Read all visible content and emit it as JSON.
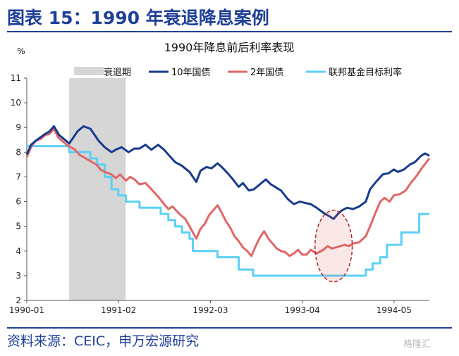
{
  "figure": {
    "title": "图表 15：1990 年衰退降息案例",
    "source": "资料来源：CEIC，申万宏源研究",
    "watermark": "格隆汇"
  },
  "colors": {
    "brand": "#1f3f99",
    "ten_year": "#173a8c",
    "two_year": "#e06666",
    "fed_funds": "#5bd0f5",
    "recession": "#d6d6d6",
    "highlight_ellipse": "#b22222"
  },
  "chart_data": {
    "type": "line",
    "title": "1990年降息前后利率表现",
    "unit": "%",
    "ylim": [
      2,
      11
    ],
    "yticks": [
      2,
      3,
      4,
      5,
      6,
      7,
      8,
      9,
      10,
      11
    ],
    "xlim": [
      1990.0,
      1994.75
    ],
    "xticks": [
      {
        "x": 1990.0,
        "label": "1990-01"
      },
      {
        "x": 1991.083,
        "label": "1991-02"
      },
      {
        "x": 1992.167,
        "label": "1992-03"
      },
      {
        "x": 1993.25,
        "label": "1993-04"
      },
      {
        "x": 1994.333,
        "label": "1994-05"
      }
    ],
    "grid": false,
    "legend_position": "top",
    "recession": {
      "name": "衰退期",
      "start": 1990.5,
      "end": 1991.167
    },
    "highlight": {
      "type": "ellipse",
      "x_center": 1993.62,
      "y_center": 4.2,
      "x_radius": 0.22,
      "y_radius": 1.45
    },
    "series": [
      {
        "name": "10年国债",
        "key": "ten_year",
        "points": [
          [
            1990.0,
            7.9
          ],
          [
            1990.05,
            8.3
          ],
          [
            1990.12,
            8.5
          ],
          [
            1990.2,
            8.7
          ],
          [
            1990.27,
            8.85
          ],
          [
            1990.32,
            9.05
          ],
          [
            1990.38,
            8.7
          ],
          [
            1990.45,
            8.5
          ],
          [
            1990.5,
            8.35
          ],
          [
            1990.55,
            8.6
          ],
          [
            1990.6,
            8.85
          ],
          [
            1990.67,
            9.05
          ],
          [
            1990.75,
            8.95
          ],
          [
            1990.8,
            8.7
          ],
          [
            1990.85,
            8.45
          ],
          [
            1990.92,
            8.2
          ],
          [
            1991.0,
            8.0
          ],
          [
            1991.05,
            8.1
          ],
          [
            1991.12,
            8.2
          ],
          [
            1991.2,
            8.0
          ],
          [
            1991.27,
            8.15
          ],
          [
            1991.33,
            8.15
          ],
          [
            1991.4,
            8.3
          ],
          [
            1991.47,
            8.1
          ],
          [
            1991.55,
            8.3
          ],
          [
            1991.62,
            8.1
          ],
          [
            1991.67,
            7.9
          ],
          [
            1991.75,
            7.6
          ],
          [
            1991.83,
            7.45
          ],
          [
            1991.92,
            7.2
          ],
          [
            1992.0,
            6.8
          ],
          [
            1992.05,
            7.25
          ],
          [
            1992.12,
            7.4
          ],
          [
            1992.18,
            7.35
          ],
          [
            1992.25,
            7.55
          ],
          [
            1992.3,
            7.4
          ],
          [
            1992.37,
            7.15
          ],
          [
            1992.42,
            6.95
          ],
          [
            1992.5,
            6.6
          ],
          [
            1992.55,
            6.75
          ],
          [
            1992.62,
            6.45
          ],
          [
            1992.68,
            6.5
          ],
          [
            1992.75,
            6.7
          ],
          [
            1992.82,
            6.9
          ],
          [
            1992.88,
            6.7
          ],
          [
            1992.95,
            6.55
          ],
          [
            1993.0,
            6.45
          ],
          [
            1993.08,
            6.1
          ],
          [
            1993.15,
            5.9
          ],
          [
            1993.22,
            6.0
          ],
          [
            1993.28,
            5.95
          ],
          [
            1993.35,
            5.9
          ],
          [
            1993.42,
            5.75
          ],
          [
            1993.5,
            5.55
          ],
          [
            1993.55,
            5.45
          ],
          [
            1993.62,
            5.3
          ],
          [
            1993.67,
            5.5
          ],
          [
            1993.72,
            5.65
          ],
          [
            1993.78,
            5.75
          ],
          [
            1993.85,
            5.7
          ],
          [
            1993.92,
            5.8
          ],
          [
            1994.0,
            6.0
          ],
          [
            1994.05,
            6.5
          ],
          [
            1994.12,
            6.8
          ],
          [
            1994.2,
            7.1
          ],
          [
            1994.27,
            7.15
          ],
          [
            1994.33,
            7.3
          ],
          [
            1994.38,
            7.2
          ],
          [
            1994.45,
            7.3
          ],
          [
            1994.52,
            7.5
          ],
          [
            1994.58,
            7.6
          ],
          [
            1994.65,
            7.85
          ],
          [
            1994.7,
            7.95
          ],
          [
            1994.75,
            7.85
          ]
        ]
      },
      {
        "name": "2年国债",
        "key": "two_year",
        "points": [
          [
            1990.0,
            7.8
          ],
          [
            1990.05,
            8.2
          ],
          [
            1990.1,
            8.45
          ],
          [
            1990.17,
            8.55
          ],
          [
            1990.22,
            8.7
          ],
          [
            1990.27,
            8.75
          ],
          [
            1990.32,
            8.95
          ],
          [
            1990.37,
            8.6
          ],
          [
            1990.42,
            8.45
          ],
          [
            1990.47,
            8.3
          ],
          [
            1990.52,
            8.2
          ],
          [
            1990.57,
            8.1
          ],
          [
            1990.62,
            7.9
          ],
          [
            1990.67,
            7.8
          ],
          [
            1990.72,
            7.7
          ],
          [
            1990.77,
            7.6
          ],
          [
            1990.82,
            7.5
          ],
          [
            1990.87,
            7.3
          ],
          [
            1990.92,
            7.2
          ],
          [
            1991.0,
            7.1
          ],
          [
            1991.05,
            6.95
          ],
          [
            1991.1,
            7.1
          ],
          [
            1991.17,
            6.85
          ],
          [
            1991.22,
            7.0
          ],
          [
            1991.27,
            6.9
          ],
          [
            1991.33,
            6.7
          ],
          [
            1991.4,
            6.75
          ],
          [
            1991.47,
            6.5
          ],
          [
            1991.55,
            6.2
          ],
          [
            1991.62,
            5.9
          ],
          [
            1991.67,
            5.7
          ],
          [
            1991.72,
            5.8
          ],
          [
            1991.8,
            5.5
          ],
          [
            1991.87,
            5.3
          ],
          [
            1991.92,
            5.0
          ],
          [
            1992.0,
            4.5
          ],
          [
            1992.05,
            4.9
          ],
          [
            1992.1,
            5.1
          ],
          [
            1992.15,
            5.45
          ],
          [
            1992.2,
            5.65
          ],
          [
            1992.25,
            5.85
          ],
          [
            1992.3,
            5.55
          ],
          [
            1992.35,
            5.2
          ],
          [
            1992.4,
            4.95
          ],
          [
            1992.45,
            4.6
          ],
          [
            1992.5,
            4.4
          ],
          [
            1992.55,
            4.15
          ],
          [
            1992.6,
            4.0
          ],
          [
            1992.65,
            3.8
          ],
          [
            1992.7,
            4.2
          ],
          [
            1992.75,
            4.55
          ],
          [
            1992.8,
            4.8
          ],
          [
            1992.85,
            4.5
          ],
          [
            1992.9,
            4.3
          ],
          [
            1992.95,
            4.1
          ],
          [
            1993.0,
            4.0
          ],
          [
            1993.05,
            3.95
          ],
          [
            1993.1,
            3.8
          ],
          [
            1993.15,
            3.9
          ],
          [
            1993.2,
            4.05
          ],
          [
            1993.25,
            3.85
          ],
          [
            1993.3,
            3.85
          ],
          [
            1993.35,
            4.05
          ],
          [
            1993.42,
            3.9
          ],
          [
            1993.5,
            4.05
          ],
          [
            1993.55,
            4.2
          ],
          [
            1993.6,
            4.1
          ],
          [
            1993.65,
            4.15
          ],
          [
            1993.7,
            4.2
          ],
          [
            1993.75,
            4.25
          ],
          [
            1993.8,
            4.2
          ],
          [
            1993.85,
            4.3
          ],
          [
            1993.92,
            4.35
          ],
          [
            1994.0,
            4.6
          ],
          [
            1994.05,
            5.0
          ],
          [
            1994.12,
            5.6
          ],
          [
            1994.17,
            6.0
          ],
          [
            1994.22,
            6.15
          ],
          [
            1994.28,
            6.0
          ],
          [
            1994.33,
            6.25
          ],
          [
            1994.4,
            6.3
          ],
          [
            1994.47,
            6.45
          ],
          [
            1994.53,
            6.75
          ],
          [
            1994.6,
            7.05
          ],
          [
            1994.67,
            7.4
          ],
          [
            1994.75,
            7.75
          ]
        ]
      },
      {
        "name": "联邦基金目标利率",
        "key": "fed_funds",
        "points": [
          [
            1990.0,
            8.25
          ],
          [
            1990.5,
            8.25
          ],
          [
            1990.5,
            8.0
          ],
          [
            1990.75,
            8.0
          ],
          [
            1990.75,
            7.75
          ],
          [
            1990.83,
            7.75
          ],
          [
            1990.83,
            7.5
          ],
          [
            1990.92,
            7.5
          ],
          [
            1990.92,
            7.0
          ],
          [
            1991.0,
            7.0
          ],
          [
            1991.0,
            6.5
          ],
          [
            1991.08,
            6.5
          ],
          [
            1991.08,
            6.25
          ],
          [
            1991.17,
            6.25
          ],
          [
            1991.17,
            6.0
          ],
          [
            1991.33,
            6.0
          ],
          [
            1991.33,
            5.75
          ],
          [
            1991.58,
            5.75
          ],
          [
            1991.58,
            5.5
          ],
          [
            1991.67,
            5.5
          ],
          [
            1991.67,
            5.25
          ],
          [
            1991.75,
            5.25
          ],
          [
            1991.75,
            5.0
          ],
          [
            1991.83,
            5.0
          ],
          [
            1991.83,
            4.75
          ],
          [
            1991.92,
            4.75
          ],
          [
            1991.92,
            4.5
          ],
          [
            1991.96,
            4.5
          ],
          [
            1991.96,
            4.0
          ],
          [
            1992.25,
            4.0
          ],
          [
            1992.25,
            3.75
          ],
          [
            1992.5,
            3.75
          ],
          [
            1992.5,
            3.25
          ],
          [
            1992.67,
            3.25
          ],
          [
            1992.67,
            3.0
          ],
          [
            1994.0,
            3.0
          ],
          [
            1994.0,
            3.25
          ],
          [
            1994.08,
            3.25
          ],
          [
            1994.08,
            3.5
          ],
          [
            1994.17,
            3.5
          ],
          [
            1994.17,
            3.75
          ],
          [
            1994.25,
            3.75
          ],
          [
            1994.25,
            4.25
          ],
          [
            1994.42,
            4.25
          ],
          [
            1994.42,
            4.75
          ],
          [
            1994.63,
            4.75
          ],
          [
            1994.63,
            5.5
          ],
          [
            1994.75,
            5.5
          ]
        ]
      }
    ]
  }
}
